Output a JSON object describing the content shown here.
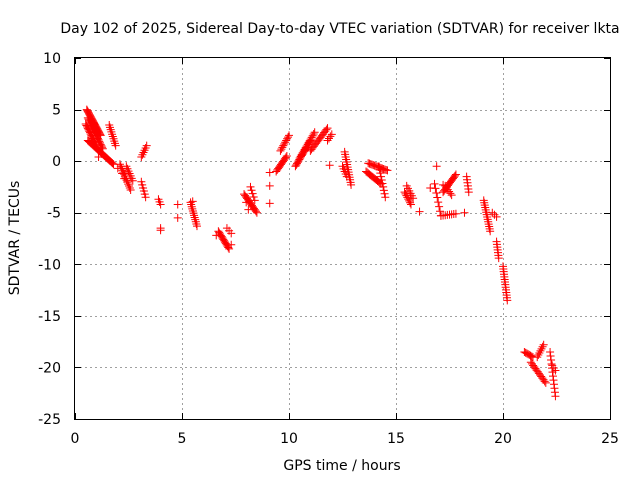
{
  "chart_data": {
    "type": "scatter",
    "title": "Day 102 of 2025, Sidereal Day-to-day VTEC variation (SDTVAR) for receiver lkta",
    "xlabel": "GPS time / hours",
    "ylabel": "SDTVAR / TECUs",
    "xlim": [
      0,
      25
    ],
    "ylim": [
      -25,
      10
    ],
    "xticks": [
      0,
      5,
      10,
      15,
      20,
      25
    ],
    "yticks": [
      -25,
      -20,
      -15,
      -10,
      -5,
      0,
      5,
      10
    ],
    "xtick_labels": [
      "0",
      "5",
      "10",
      "15",
      "20",
      "25"
    ],
    "ytick_labels": [
      "-25",
      "-20",
      "-15",
      "-10",
      "-5",
      "0",
      "5",
      "10"
    ],
    "grid": true,
    "marker": "plus",
    "marker_color": "#ff0000",
    "series": [
      {
        "name": "SDTVAR",
        "segments": [
          {
            "start": [
              0.55,
              5.0
            ],
            "end": [
              1.2,
              2.5
            ],
            "n": 26
          },
          {
            "start": [
              0.6,
              4.2
            ],
            "end": [
              1.3,
              1.2
            ],
            "n": 22
          },
          {
            "start": [
              0.5,
              3.6
            ],
            "end": [
              1.0,
              1.5
            ],
            "n": 16
          },
          {
            "start": [
              0.6,
              2.0
            ],
            "end": [
              1.8,
              -0.3
            ],
            "n": 26
          },
          {
            "start": [
              1.6,
              3.5
            ],
            "end": [
              1.9,
              1.5
            ],
            "n": 10
          },
          {
            "start": [
              2.1,
              -0.3
            ],
            "end": [
              2.6,
              -2.8
            ],
            "n": 14
          },
          {
            "start": [
              2.4,
              -0.5
            ],
            "end": [
              2.7,
              -1.9
            ],
            "n": 7
          },
          {
            "start": [
              3.1,
              0.4
            ],
            "end": [
              3.35,
              1.5
            ],
            "n": 6
          },
          {
            "start": [
              3.1,
              -2.0
            ],
            "end": [
              3.3,
              -3.5
            ],
            "n": 6
          },
          {
            "start": [
              3.9,
              -3.7
            ],
            "end": [
              4.0,
              -4.2
            ],
            "n": 3
          },
          {
            "start": [
              5.4,
              -4.0
            ],
            "end": [
              5.7,
              -6.3
            ],
            "n": 12
          },
          {
            "start": [
              6.7,
              -6.8
            ],
            "end": [
              7.2,
              -8.5
            ],
            "n": 14
          },
          {
            "start": [
              7.1,
              -6.5
            ],
            "end": [
              7.3,
              -7.0
            ],
            "n": 3
          },
          {
            "start": [
              7.9,
              -3.2
            ],
            "end": [
              8.5,
              -5.0
            ],
            "n": 14
          },
          {
            "start": [
              8.2,
              -2.5
            ],
            "end": [
              8.4,
              -3.8
            ],
            "n": 5
          },
          {
            "start": [
              9.4,
              -1.0
            ],
            "end": [
              9.9,
              0.5
            ],
            "n": 12
          },
          {
            "start": [
              9.6,
              1.0
            ],
            "end": [
              10.0,
              2.5
            ],
            "n": 10
          },
          {
            "start": [
              10.3,
              -0.5
            ],
            "end": [
              11.0,
              2.0
            ],
            "n": 20
          },
          {
            "start": [
              10.5,
              0.3
            ],
            "end": [
              11.2,
              2.8
            ],
            "n": 16
          },
          {
            "start": [
              11.0,
              1.0
            ],
            "end": [
              11.8,
              3.2
            ],
            "n": 16
          },
          {
            "start": [
              11.8,
              2.0
            ],
            "end": [
              12.0,
              2.6
            ],
            "n": 4
          },
          {
            "start": [
              12.6,
              0.9
            ],
            "end": [
              12.9,
              -2.3
            ],
            "n": 14
          },
          {
            "start": [
              12.5,
              -0.5
            ],
            "end": [
              12.7,
              -1.5
            ],
            "n": 5
          },
          {
            "start": [
              13.6,
              -1.0
            ],
            "end": [
              14.3,
              -2.2
            ],
            "n": 14
          },
          {
            "start": [
              13.7,
              -0.2
            ],
            "end": [
              14.6,
              -0.9
            ],
            "n": 16
          },
          {
            "start": [
              14.2,
              -0.5
            ],
            "end": [
              14.5,
              -3.5
            ],
            "n": 10
          },
          {
            "start": [
              15.4,
              -3.0
            ],
            "end": [
              15.7,
              -4.2
            ],
            "n": 8
          },
          {
            "start": [
              15.5,
              -2.4
            ],
            "end": [
              15.8,
              -3.6
            ],
            "n": 6
          },
          {
            "start": [
              16.8,
              -2.2
            ],
            "end": [
              17.1,
              -5.3
            ],
            "n": 8
          },
          {
            "start": [
              17.2,
              -3.0
            ],
            "end": [
              17.8,
              -1.3
            ],
            "n": 14
          },
          {
            "start": [
              17.3,
              -2.4
            ],
            "end": [
              17.6,
              -3.3
            ],
            "n": 6
          },
          {
            "start": [
              17.1,
              -5.3
            ],
            "end": [
              17.8,
              -5.1
            ],
            "n": 8
          },
          {
            "start": [
              18.3,
              -1.5
            ],
            "end": [
              18.4,
              -3.0
            ],
            "n": 6
          },
          {
            "start": [
              19.1,
              -3.8
            ],
            "end": [
              19.4,
              -6.8
            ],
            "n": 14
          },
          {
            "start": [
              19.5,
              -5.0
            ],
            "end": [
              19.7,
              -5.4
            ],
            "n": 3
          },
          {
            "start": [
              19.7,
              -7.8
            ],
            "end": [
              19.8,
              -9.4
            ],
            "n": 7
          },
          {
            "start": [
              20.0,
              -10.2
            ],
            "end": [
              20.2,
              -13.5
            ],
            "n": 14
          },
          {
            "start": [
              21.0,
              -18.5
            ],
            "end": [
              21.4,
              -19.0
            ],
            "n": 8
          },
          {
            "start": [
              21.3,
              -19.5
            ],
            "end": [
              22.0,
              -21.5
            ],
            "n": 14
          },
          {
            "start": [
              21.6,
              -19.0
            ],
            "end": [
              21.9,
              -17.8
            ],
            "n": 7
          },
          {
            "start": [
              22.2,
              -18.5
            ],
            "end": [
              22.45,
              -22.8
            ],
            "n": 12
          },
          {
            "start": [
              22.3,
              -19.8
            ],
            "end": [
              22.45,
              -20.3
            ],
            "n": 3
          }
        ],
        "points": [
          [
            0.8,
            3.2
          ],
          [
            1.1,
            0.4
          ],
          [
            1.25,
            0.7
          ],
          [
            2.2,
            -1.2
          ],
          [
            2.3,
            -1.7
          ],
          [
            2.0,
            -0.7
          ],
          [
            4.0,
            -6.5
          ],
          [
            4.0,
            -6.7
          ],
          [
            4.8,
            -4.2
          ],
          [
            4.8,
            -5.5
          ],
          [
            5.5,
            -3.9
          ],
          [
            6.6,
            -7.2
          ],
          [
            7.3,
            -8.1
          ],
          [
            8.0,
            -4.0
          ],
          [
            8.1,
            -4.7
          ],
          [
            9.1,
            -1.1
          ],
          [
            9.1,
            -2.4
          ],
          [
            9.1,
            -4.1
          ],
          [
            11.9,
            -0.4
          ],
          [
            16.1,
            -4.9
          ],
          [
            16.6,
            -2.6
          ],
          [
            16.9,
            -0.5
          ],
          [
            17.2,
            -2.3
          ],
          [
            18.2,
            -5.0
          ]
        ]
      }
    ]
  }
}
